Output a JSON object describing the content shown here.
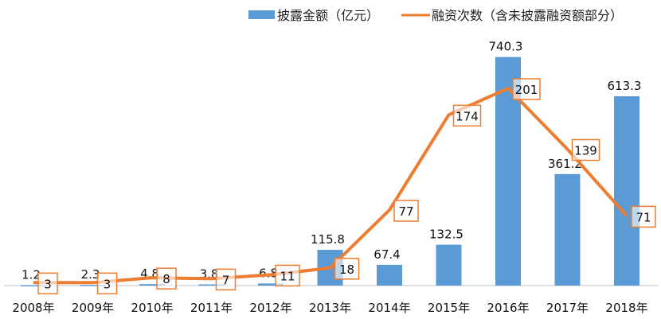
{
  "chart_data": {
    "type": "bar+line",
    "categories": [
      "2008年",
      "2009年",
      "2010年",
      "2011年",
      "2012年",
      "2013年",
      "2014年",
      "2015年",
      "2016年",
      "2017年",
      "2018年"
    ],
    "series": [
      {
        "name": "披露金额（亿元）",
        "type": "bar",
        "axis": "primary",
        "color": "#5B9BD5",
        "values": [
          1.2,
          2.3,
          4.8,
          3.8,
          6.8,
          115.8,
          67.4,
          132.5,
          740.3,
          361.2,
          613.3
        ]
      },
      {
        "name": "融资次数（含未披露融资额部分）",
        "type": "line",
        "axis": "secondary",
        "color": "#ED7D31",
        "values": [
          3,
          3,
          8,
          7,
          11,
          18,
          77,
          174,
          201,
          139,
          71
        ]
      }
    ],
    "ylim_primary": [
      0,
      925
    ],
    "ylim_secondary": [
      0,
      291
    ],
    "grid": false,
    "legend": "top-right",
    "axis_color": "#BFBFBF"
  }
}
